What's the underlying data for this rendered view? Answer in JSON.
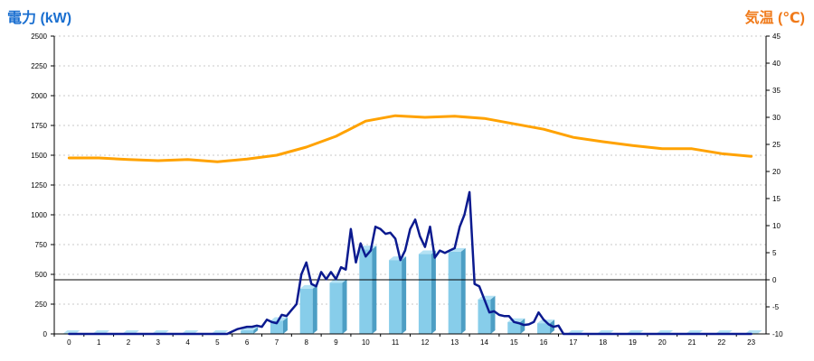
{
  "chart_data": {
    "type": "bar",
    "title_left": "電力 (kW)",
    "title_right": "気温 (℃)",
    "colors": {
      "left_title": "#1a6fd0",
      "right_title": "#f07a1a",
      "bar_front": "#87cdea",
      "bar_side": "#4d9ec4",
      "bar_top": "#b4e2f4",
      "power_line": "#0b1a8f",
      "temp_line": "#ffa200",
      "grid": "#c8c8c8"
    },
    "grid": true,
    "y_left": {
      "min": 0,
      "max": 2500,
      "ticks": [
        0,
        250,
        500,
        750,
        1000,
        1250,
        1500,
        1750,
        2000,
        2250,
        2500
      ]
    },
    "y_right": {
      "min": -10,
      "max": 45,
      "ticks": [
        -10,
        -5,
        0,
        5,
        10,
        15,
        20,
        25,
        30,
        35,
        40,
        45
      ]
    },
    "categories": [
      "0",
      "1",
      "2",
      "3",
      "4",
      "5",
      "6",
      "7",
      "8",
      "9",
      "10",
      "11",
      "12",
      "13",
      "14",
      "15",
      "16",
      "17",
      "18",
      "19",
      "20",
      "21",
      "22",
      "23"
    ],
    "series": [
      {
        "kind": "bar",
        "axis": "left",
        "values": [
          0,
          0,
          0,
          0,
          0,
          0,
          30,
          110,
          380,
          430,
          710,
          620,
          670,
          690,
          290,
          100,
          90,
          0,
          0,
          0,
          0,
          0,
          0,
          0
        ]
      },
      {
        "kind": "line",
        "axis": "left",
        "x": [
          0,
          1,
          2,
          3,
          4,
          5,
          5.33,
          5.67,
          6,
          6.17,
          6.33,
          6.5,
          6.67,
          6.83,
          7,
          7.17,
          7.33,
          7.5,
          7.67,
          7.83,
          8,
          8.17,
          8.33,
          8.5,
          8.67,
          8.83,
          9,
          9.17,
          9.33,
          9.5,
          9.67,
          9.83,
          10,
          10.17,
          10.33,
          10.5,
          10.67,
          10.83,
          11,
          11.17,
          11.33,
          11.5,
          11.67,
          11.83,
          12,
          12.17,
          12.33,
          12.5,
          12.67,
          12.83,
          13,
          13.17,
          13.33,
          13.5,
          13.67,
          13.83,
          14,
          14.17,
          14.33,
          14.5,
          14.67,
          14.83,
          15,
          15.17,
          15.33,
          15.5,
          15.67,
          15.83,
          16,
          16.17,
          16.33,
          16.5,
          16.67,
          17,
          18,
          19,
          20,
          21,
          22,
          23
        ],
        "values": [
          0,
          0,
          0,
          0,
          0,
          0,
          0,
          40,
          60,
          60,
          70,
          60,
          120,
          100,
          90,
          160,
          150,
          200,
          250,
          500,
          600,
          420,
          400,
          520,
          460,
          520,
          460,
          560,
          540,
          880,
          600,
          760,
          650,
          700,
          900,
          880,
          840,
          850,
          800,
          620,
          700,
          880,
          960,
          820,
          730,
          900,
          640,
          700,
          680,
          700,
          720,
          900,
          1000,
          1190,
          420,
          400,
          290,
          180,
          190,
          160,
          150,
          150,
          100,
          90,
          75,
          80,
          100,
          180,
          120,
          80,
          60,
          70,
          0,
          0,
          0,
          0,
          0,
          0,
          0,
          0
        ]
      },
      {
        "kind": "line",
        "axis": "right",
        "x": [
          0,
          1,
          2,
          3,
          4,
          5,
          6,
          7,
          8,
          9,
          10,
          11,
          12,
          13,
          14,
          15,
          16,
          17,
          18,
          19,
          20,
          21,
          22,
          23
        ],
        "values": [
          22.5,
          22.5,
          22.2,
          22,
          22.2,
          21.8,
          22.3,
          23,
          24.5,
          26.5,
          29.3,
          30.3,
          30,
          30.2,
          29.8,
          28.8,
          27.8,
          26.3,
          25.5,
          24.8,
          24.2,
          24.2,
          23.3,
          22.8
        ]
      }
    ]
  }
}
